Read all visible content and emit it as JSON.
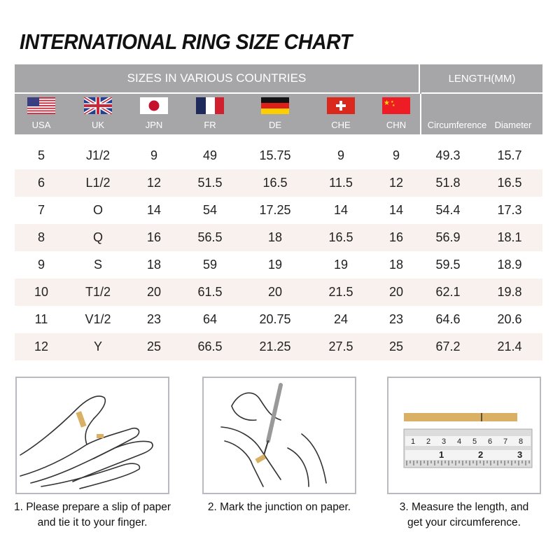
{
  "title": "INTERNATIONAL RING SIZE CHART",
  "header": {
    "sizes_label": "SIZES IN VARIOUS COUNTRIES",
    "length_label": "LENGTH(MM)",
    "countries": [
      {
        "code": "USA",
        "flag": "usa-flag"
      },
      {
        "code": "UK",
        "flag": "uk-flag"
      },
      {
        "code": "JPN",
        "flag": "japan-flag"
      },
      {
        "code": "FR",
        "flag": "france-flag"
      },
      {
        "code": "DE",
        "flag": "germany-flag"
      },
      {
        "code": "CHE",
        "flag": "switzerland-flag"
      },
      {
        "code": "CHN",
        "flag": "china-flag"
      }
    ],
    "length_cols": [
      "Circumference",
      "Diameter"
    ]
  },
  "rows": [
    [
      "5",
      "J1/2",
      "9",
      "49",
      "15.75",
      "9",
      "9",
      "49.3",
      "15.7"
    ],
    [
      "6",
      "L1/2",
      "12",
      "51.5",
      "16.5",
      "11.5",
      "12",
      "51.8",
      "16.5"
    ],
    [
      "7",
      "O",
      "14",
      "54",
      "17.25",
      "14",
      "14",
      "54.4",
      "17.3"
    ],
    [
      "8",
      "Q",
      "16",
      "56.5",
      "18",
      "16.5",
      "16",
      "56.9",
      "18.1"
    ],
    [
      "9",
      "S",
      "18",
      "59",
      "19",
      "19",
      "18",
      "59.5",
      "18.9"
    ],
    [
      "10",
      "T1/2",
      "20",
      "61.5",
      "20",
      "21.5",
      "20",
      "62.1",
      "19.8"
    ],
    [
      "11",
      "V1/2",
      "23",
      "64",
      "20.75",
      "24",
      "23",
      "64.6",
      "20.6"
    ],
    [
      "12",
      "Y",
      "25",
      "66.5",
      "21.25",
      "27.5",
      "25",
      "67.2",
      "21.4"
    ]
  ],
  "colors": {
    "header_bg": "#a6a6a8",
    "stripe": "#f8f1ee",
    "paper": "#d9b064"
  },
  "steps": [
    {
      "line1": "1. Please prepare a slip of paper",
      "line2": "and tie it to your finger."
    },
    {
      "line1": "2. Mark the junction on paper.",
      "line2": ""
    },
    {
      "line1": "3. Measure the length, and",
      "line2": "get your circumference."
    }
  ],
  "ruler_numbers": {
    "top": [
      "1",
      "2",
      "3",
      "4",
      "5",
      "6",
      "7",
      "8"
    ],
    "bottom": [
      "1",
      "2",
      "3"
    ]
  }
}
